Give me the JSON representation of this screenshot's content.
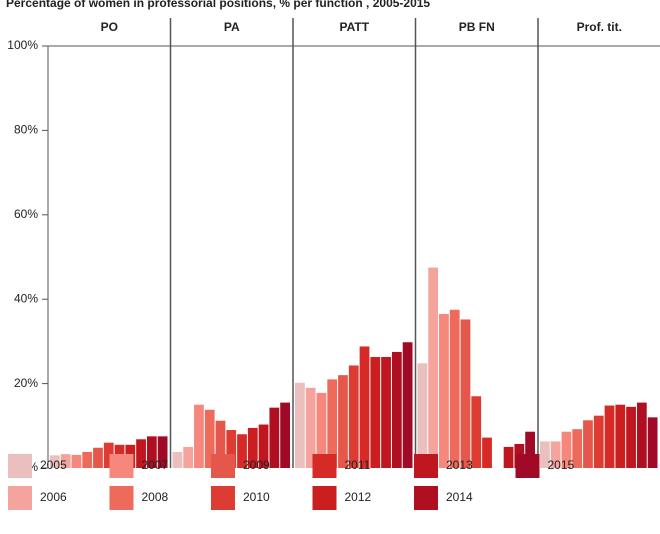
{
  "chart_data": {
    "type": "bar",
    "title": "Percentage of women in professorial positions, % per function , 2005-2015",
    "categories": [
      "PO",
      "PA",
      "PATT",
      "PB FN",
      "Prof. tit."
    ],
    "ylim": [
      0,
      100
    ],
    "yticks": [
      {
        "value": 0,
        "label": "0%"
      },
      {
        "value": 20,
        "label": "20%"
      },
      {
        "value": 40,
        "label": "40%"
      },
      {
        "value": 60,
        "label": "60%"
      },
      {
        "value": 80,
        "label": "80%"
      },
      {
        "value": 100,
        "label": "100%"
      }
    ],
    "series": [
      {
        "name": "2005",
        "color": "#eabfbd",
        "values": [
          3.0,
          3.8,
          20.2,
          24.8,
          6.3
        ]
      },
      {
        "name": "2006",
        "color": "#f4a39d",
        "values": [
          3.3,
          5.0,
          19.0,
          47.5,
          6.3
        ]
      },
      {
        "name": "2007",
        "color": "#f5877c",
        "values": [
          3.1,
          15.0,
          17.8,
          36.5,
          8.6
        ]
      },
      {
        "name": "2008",
        "color": "#ee6a5b",
        "values": [
          3.8,
          13.8,
          21.0,
          37.5,
          9.2
        ]
      },
      {
        "name": "2009",
        "color": "#e4574a",
        "values": [
          4.8,
          11.2,
          22.0,
          35.2,
          11.3
        ]
      },
      {
        "name": "2010",
        "color": "#dc3c31",
        "values": [
          6.0,
          9.0,
          24.3,
          17.0,
          12.4
        ]
      },
      {
        "name": "2011",
        "color": "#d62a26",
        "values": [
          5.5,
          8.0,
          28.8,
          7.2,
          14.8
        ]
      },
      {
        "name": "2012",
        "color": "#cb1e1e",
        "values": [
          5.5,
          9.5,
          26.3,
          null,
          15.0
        ]
      },
      {
        "name": "2013",
        "color": "#bf1620",
        "values": [
          6.8,
          10.3,
          26.3,
          5.0,
          14.5
        ]
      },
      {
        "name": "2014",
        "color": "#b00f21",
        "values": [
          7.5,
          14.3,
          27.5,
          5.7,
          15.5
        ]
      },
      {
        "name": "2015",
        "color": "#a00a26",
        "values": [
          7.5,
          15.5,
          29.8,
          8.6,
          12.0
        ]
      }
    ]
  }
}
